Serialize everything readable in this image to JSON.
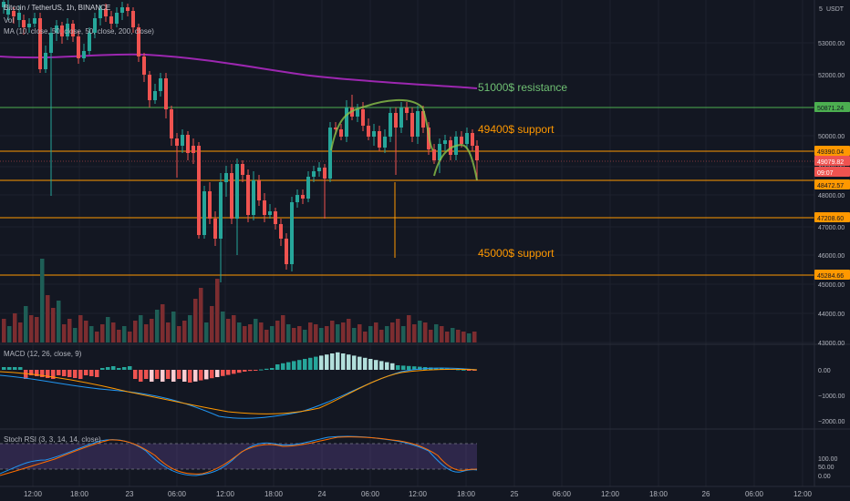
{
  "header": {
    "symbol_line": "Bitcoin / TetherUS, 1h, BINANCE",
    "volume_label": "Vol",
    "ma_label": "MA (10, close, 50, close, 50, close, 200, close)"
  },
  "currency": "USDT",
  "currency_corner": "5",
  "price_axis": {
    "ticks": [
      "53000.00",
      "52000.00",
      "51000.00",
      "50000.00",
      "49000.00",
      "48000.00",
      "47000.00",
      "46000.00",
      "45000.00",
      "44000.00",
      "43000.00"
    ]
  },
  "badges": [
    {
      "text": "50871.24",
      "bg": "#4caf50",
      "fg": "#131722"
    },
    {
      "text": "49390.04",
      "bg": "#ff9800",
      "fg": "#131722"
    },
    {
      "text": "49079.82",
      "bg": "#ef5350",
      "fg": "#ffffff"
    },
    {
      "text": "09:07",
      "bg": "#ef5350",
      "fg": "#ffffff"
    },
    {
      "text": "48472.57",
      "bg": "#ff9800",
      "fg": "#131722"
    },
    {
      "text": "47208.60",
      "bg": "#ff9800",
      "fg": "#131722"
    },
    {
      "text": "45284.66",
      "bg": "#ff9800",
      "fg": "#131722"
    }
  ],
  "annotations": [
    {
      "text": "51000$ resistance",
      "color": "#6fbf73"
    },
    {
      "text": "49400$ support",
      "color": "#ff9800"
    },
    {
      "text": "45000$ support",
      "color": "#ff9800"
    }
  ],
  "macd": {
    "label": "MACD (12, 26, close, 9)",
    "ticks": [
      "0.00",
      "−1000.00",
      "−2000.00"
    ]
  },
  "stoch": {
    "label": "Stoch RSI (3, 3, 14, 14, close)",
    "ticks": [
      "100.00",
      "50.00",
      "0.00"
    ]
  },
  "time_axis": {
    "labels": [
      "12:00",
      "18:00",
      "23",
      "06:00",
      "12:00",
      "18:00",
      "24",
      "06:00",
      "12:00",
      "18:00",
      "25",
      "06:00",
      "12:00",
      "18:00",
      "26",
      "06:00",
      "12:00"
    ]
  },
  "colors": {
    "up": "#26a69a",
    "down": "#ef5350",
    "ma200": "#9c27b0",
    "support": "#ff9800",
    "resistance": "#4caf50"
  }
}
